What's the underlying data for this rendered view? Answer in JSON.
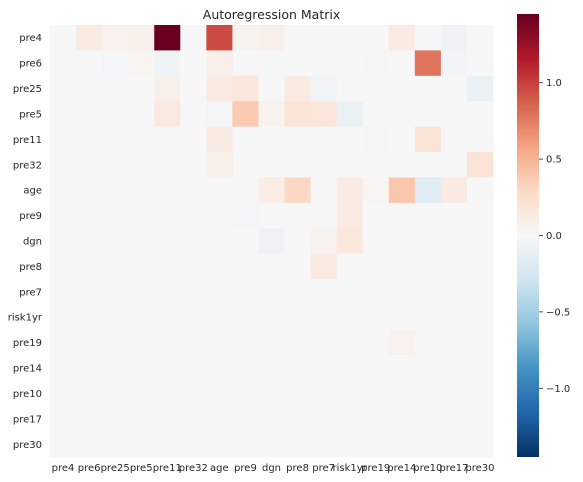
{
  "chart_data": {
    "type": "heatmap",
    "title": "Autoregression Matrix",
    "xlabel": "",
    "ylabel": "",
    "rows": [
      "pre4",
      "pre6",
      "pre25",
      "pre5",
      "pre11",
      "pre32",
      "age",
      "pre9",
      "dgn",
      "pre8",
      "pre7",
      "risk1yr",
      "pre19",
      "pre14",
      "pre10",
      "pre17",
      "pre30"
    ],
    "cols": [
      "pre4",
      "pre6",
      "pre25",
      "pre5",
      "pre11",
      "pre32",
      "age",
      "pre9",
      "dgn",
      "pre8",
      "pre7",
      "risk1yr",
      "pre19",
      "pre14",
      "pre10",
      "pre17",
      "pre30"
    ],
    "values": [
      [
        0,
        0.12,
        0.06,
        0.07,
        1.45,
        0,
        0.95,
        0.05,
        0.08,
        0,
        0,
        0,
        0,
        0.12,
        0,
        -0.06,
        0
      ],
      [
        0,
        0,
        -0.02,
        0.03,
        -0.07,
        0,
        0.08,
        0,
        0,
        0,
        0,
        0,
        -0.01,
        0,
        0.78,
        -0.04,
        0
      ],
      [
        0,
        0,
        0,
        0,
        0.08,
        0,
        0.12,
        0.17,
        0,
        0.13,
        -0.05,
        0,
        0,
        0,
        0,
        0,
        -0.1
      ],
      [
        0,
        0,
        0,
        0,
        0.15,
        0,
        -0.02,
        0.38,
        0.05,
        0.2,
        0.18,
        -0.1,
        0,
        0,
        0,
        0,
        0
      ],
      [
        0,
        0,
        0,
        0,
        0,
        0,
        0.12,
        0,
        0,
        0,
        0,
        0,
        -0.01,
        0,
        0.2,
        0,
        0
      ],
      [
        0,
        0,
        0,
        0,
        0,
        0,
        0.07,
        0,
        0,
        0,
        0,
        0,
        0,
        0,
        0,
        0,
        0.2
      ],
      [
        0,
        0,
        0,
        0,
        0,
        0,
        0,
        -0.01,
        0.1,
        0.3,
        0,
        0.12,
        0.03,
        0.4,
        -0.18,
        0.13,
        0
      ],
      [
        0,
        0,
        0,
        0,
        0,
        0,
        0,
        -0.03,
        0,
        0,
        0,
        0.12,
        0,
        0,
        0,
        0,
        0
      ],
      [
        0,
        0,
        0,
        0,
        0,
        0,
        0,
        0,
        -0.08,
        0,
        0.05,
        0.16,
        0,
        0,
        0,
        0,
        0
      ],
      [
        0,
        0,
        0,
        0,
        0,
        0,
        0,
        0,
        0,
        0,
        0.14,
        0,
        0,
        0,
        0,
        0,
        0
      ],
      [
        0,
        0,
        0,
        0,
        0,
        0,
        0,
        0,
        0,
        0,
        0,
        0,
        0,
        0,
        0,
        0,
        0
      ],
      [
        0,
        0,
        0,
        0,
        0,
        0,
        0,
        0,
        0,
        0,
        0,
        0,
        0,
        0,
        0,
        0,
        0
      ],
      [
        0,
        0,
        0,
        0,
        0,
        0,
        0,
        0,
        0,
        0,
        0,
        0,
        0,
        0.06,
        0,
        0,
        0
      ],
      [
        0,
        0,
        0,
        0,
        0,
        0,
        0,
        0,
        0,
        0,
        0,
        0,
        0,
        0,
        0,
        0,
        0
      ],
      [
        0,
        0,
        0,
        0,
        0,
        0,
        0,
        0,
        0,
        0,
        0,
        0,
        0,
        0,
        0,
        0,
        0
      ],
      [
        0,
        0,
        0,
        0,
        0,
        0,
        0,
        0,
        0,
        0,
        0,
        0,
        0,
        0,
        0,
        0,
        0
      ],
      [
        0,
        0,
        0,
        0,
        0,
        0,
        0,
        0,
        0,
        0,
        0,
        0,
        0,
        0,
        0,
        0,
        0
      ]
    ],
    "vmin": -1.45,
    "vmax": 1.45,
    "colormap": "RdBu_r",
    "colorbar": {
      "ticks": [
        1.0,
        0.5,
        0.0,
        -0.5,
        -1.0
      ],
      "tick_labels": [
        "1.0",
        "0.5",
        "0.0",
        "−0.5",
        "−1.0"
      ],
      "placement": "right"
    }
  }
}
